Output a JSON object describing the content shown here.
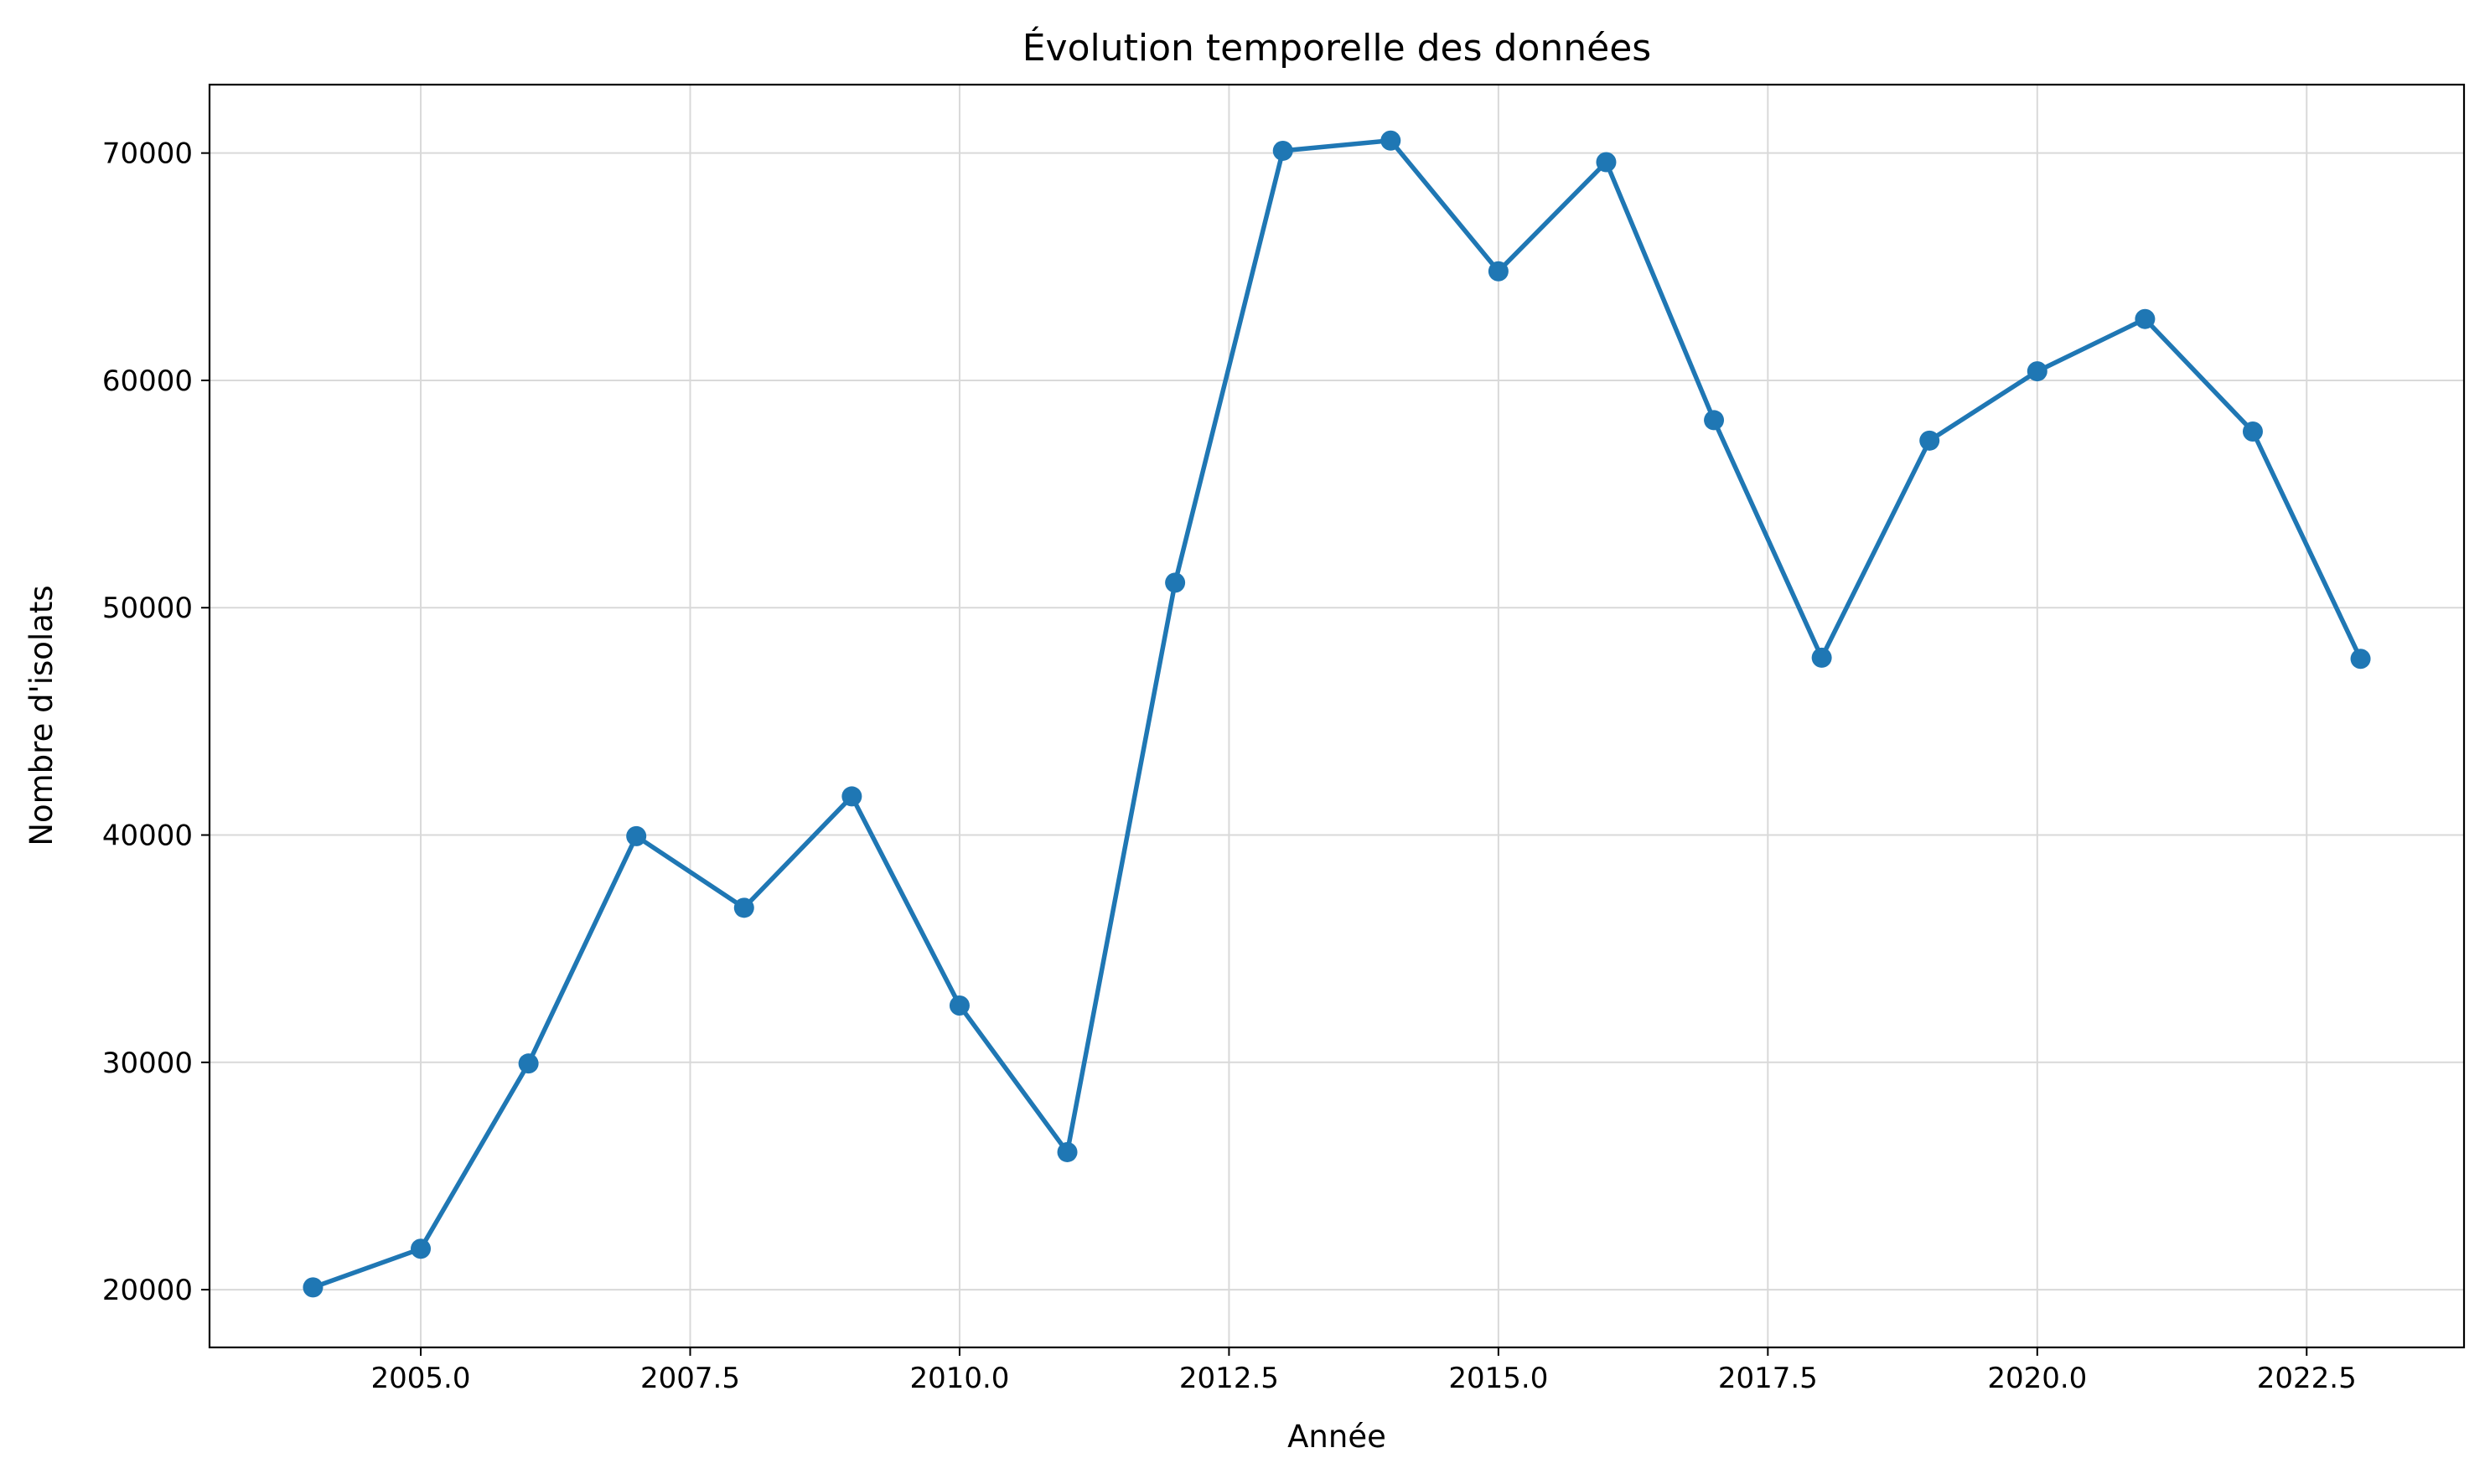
{
  "chart_data": {
    "type": "line",
    "title": "Évolution temporelle des données",
    "xlabel": "Année",
    "ylabel": "Nombre d'isolats",
    "x": [
      2004,
      2005,
      2006,
      2007,
      2008,
      2009,
      2010,
      2011,
      2012,
      2013,
      2014,
      2015,
      2016,
      2017,
      2018,
      2019,
      2020,
      2021,
      2022,
      2023
    ],
    "series": [
      {
        "values": [
          20100,
          21800,
          29950,
          39950,
          36800,
          41700,
          32500,
          26050,
          51100,
          70100,
          70550,
          64800,
          69600,
          58250,
          47800,
          57350,
          60400,
          62700,
          57750,
          47750
        ],
        "color": "#1f77b4",
        "marker": "circle"
      }
    ],
    "xlim": [
      2003.04,
      2023.96
    ],
    "ylim": [
      17460,
      73010
    ],
    "xticks": [
      2005.0,
      2007.5,
      2010.0,
      2012.5,
      2015.0,
      2017.5,
      2020.0,
      2022.5
    ],
    "xtick_labels": [
      "2005.0",
      "2007.5",
      "2010.0",
      "2012.5",
      "2015.0",
      "2017.5",
      "2020.0",
      "2022.5"
    ],
    "yticks": [
      20000,
      30000,
      40000,
      50000,
      60000,
      70000
    ],
    "ytick_labels": [
      "20000",
      "30000",
      "40000",
      "50000",
      "60000",
      "70000"
    ],
    "grid": true,
    "legend": "none"
  }
}
